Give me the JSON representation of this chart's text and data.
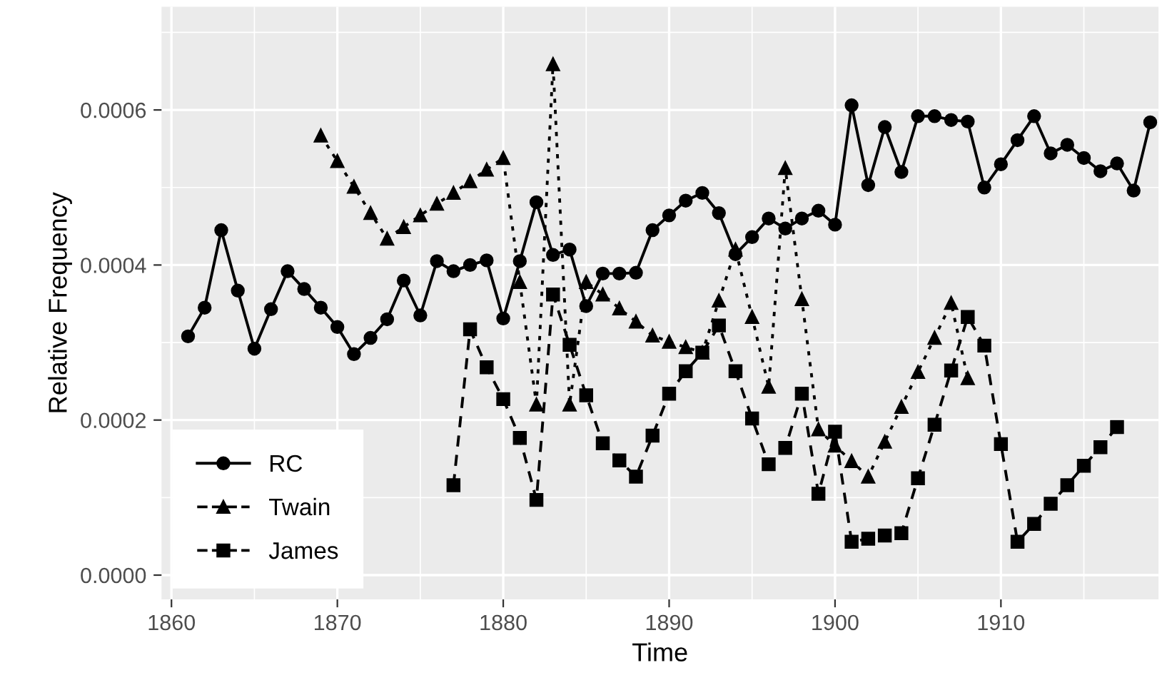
{
  "chart_data": {
    "type": "line",
    "xlabel": "Time",
    "ylabel": "Relative Frequency",
    "xlim": [
      1859.4,
      1919.5
    ],
    "xticks": [
      1860,
      1870,
      1880,
      1890,
      1900,
      1910
    ],
    "ylim": [
      -3.13e-05,
      0.000733
    ],
    "yticks": [
      {
        "value": 0,
        "label": "0.0000"
      },
      {
        "value": 0.0002,
        "label": "0.0002"
      },
      {
        "value": 0.0004,
        "label": "0.0004"
      },
      {
        "value": 0.0006,
        "label": "0.0006"
      }
    ],
    "grid": true,
    "legend": "bottom left",
    "series": [
      {
        "name": "RC",
        "color": "#000000",
        "marker": "circle",
        "line_style": "solid",
        "x": [
          1861,
          1862,
          1863,
          1864,
          1865,
          1866,
          1867,
          1868,
          1869,
          1870,
          1871,
          1872,
          1873,
          1874,
          1875,
          1876,
          1877,
          1878,
          1879,
          1880,
          1881,
          1882,
          1883,
          1884,
          1885,
          1886,
          1887,
          1888,
          1889,
          1890,
          1891,
          1892,
          1893,
          1894,
          1895,
          1896,
          1897,
          1898,
          1899,
          1900,
          1901,
          1902,
          1903,
          1904,
          1905,
          1906,
          1907,
          1908,
          1909,
          1910,
          1911,
          1912,
          1913,
          1914,
          1915,
          1916,
          1917,
          1918,
          1919
        ],
        "values": [
          0.000308,
          0.000345,
          0.000445,
          0.000367,
          0.000292,
          0.000343,
          0.000392,
          0.000369,
          0.000345,
          0.00032,
          0.000285,
          0.000306,
          0.00033,
          0.00038,
          0.000335,
          0.000405,
          0.000392,
          0.0004,
          0.000406,
          0.000331,
          0.000405,
          0.000481,
          0.000413,
          0.00042,
          0.000347,
          0.000389,
          0.000389,
          0.00039,
          0.000445,
          0.000464,
          0.000483,
          0.000493,
          0.000467,
          0.000414,
          0.000436,
          0.00046,
          0.000447,
          0.00046,
          0.00047,
          0.000452,
          0.000606,
          0.000503,
          0.000578,
          0.00052,
          0.000592,
          0.000592,
          0.000587,
          0.000585,
          0.0005,
          0.00053,
          0.000561,
          0.000592,
          0.000544,
          0.000555,
          0.000538,
          0.000521,
          0.000531,
          0.000496,
          0.000584
        ]
      },
      {
        "name": "Twain",
        "color": "#000000",
        "marker": "triangle",
        "line_style": "dotted",
        "x": [
          1869,
          1870,
          1871,
          1872,
          1873,
          1874,
          1875,
          1876,
          1877,
          1878,
          1879,
          1880,
          1881,
          1882,
          1883,
          1884,
          1885,
          1886,
          1887,
          1888,
          1889,
          1890,
          1891,
          1892,
          1893,
          1894,
          1895,
          1896,
          1897,
          1898,
          1899,
          1900,
          1901,
          1902,
          1903,
          1904,
          1905,
          1906,
          1907,
          1908
        ],
        "values": [
          0.000567,
          0.000534,
          0.000501,
          0.000467,
          0.000434,
          0.000449,
          0.000464,
          0.000479,
          0.000493,
          0.000508,
          0.000523,
          0.000538,
          0.000378,
          0.00022,
          0.000659,
          0.00022,
          0.000378,
          0.000362,
          0.000344,
          0.000327,
          0.000309,
          0.000301,
          0.000294,
          0.000287,
          0.000354,
          0.00042,
          0.000333,
          0.000243,
          0.000525,
          0.000356,
          0.000188,
          0.000167,
          0.000147,
          0.000127,
          0.000172,
          0.000217,
          0.000262,
          0.000306,
          0.000351,
          0.000254
        ]
      },
      {
        "name": "James",
        "color": "#000000",
        "marker": "square",
        "line_style": "dashed",
        "x": [
          1877,
          1878,
          1879,
          1880,
          1881,
          1882,
          1883,
          1884,
          1885,
          1886,
          1887,
          1888,
          1889,
          1890,
          1891,
          1892,
          1893,
          1894,
          1895,
          1896,
          1897,
          1898,
          1899,
          1900,
          1901,
          1902,
          1903,
          1904,
          1905,
          1906,
          1907,
          1908,
          1909,
          1910,
          1911,
          1912,
          1913,
          1914,
          1915,
          1916,
          1917
        ],
        "values": [
          0.000116,
          0.000317,
          0.000268,
          0.000227,
          0.000177,
          9.7e-05,
          0.000362,
          0.000297,
          0.000232,
          0.00017,
          0.000148,
          0.000127,
          0.00018,
          0.000234,
          0.000263,
          0.000287,
          0.000322,
          0.000263,
          0.000202,
          0.000143,
          0.000164,
          0.000234,
          0.000105,
          0.000185,
          4.3e-05,
          4.7e-05,
          5.1e-05,
          5.4e-05,
          0.000125,
          0.000194,
          0.000264,
          0.000333,
          0.000296,
          0.000169,
          4.3e-05,
          6.6e-05,
          9.2e-05,
          0.000116,
          0.000141,
          0.000165,
          0.000191
        ]
      }
    ]
  }
}
